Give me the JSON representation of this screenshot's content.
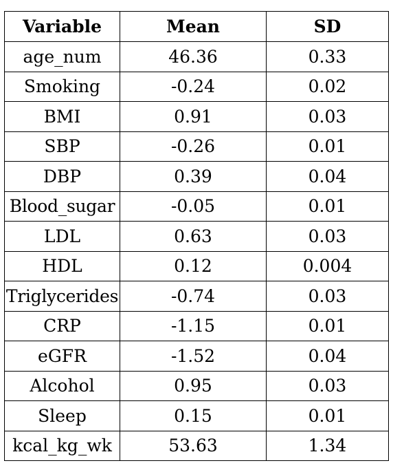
{
  "table": {
    "headers": [
      "Variable",
      "Mean",
      "SD"
    ],
    "rows": [
      [
        "age_num",
        "46.36",
        "0.33"
      ],
      [
        "Smoking",
        "-0.24",
        "0.02"
      ],
      [
        "BMI",
        "0.91",
        "0.03"
      ],
      [
        "SBP",
        "-0.26",
        "0.01"
      ],
      [
        "DBP",
        "0.39",
        "0.04"
      ],
      [
        "Blood_sugar",
        "-0.05",
        "0.01"
      ],
      [
        "LDL",
        "0.63",
        "0.03"
      ],
      [
        "HDL",
        "0.12",
        "0.004"
      ],
      [
        "Triglycerides",
        "-0.74",
        "0.03"
      ],
      [
        "CRP",
        "-1.15",
        "0.01"
      ],
      [
        "eGFR",
        "-1.52",
        "0.04"
      ],
      [
        "Alcohol",
        "0.95",
        "0.03"
      ],
      [
        "Sleep",
        "0.15",
        "0.01"
      ],
      [
        "kcal_kg_wk",
        "53.63",
        "1.34"
      ]
    ]
  }
}
